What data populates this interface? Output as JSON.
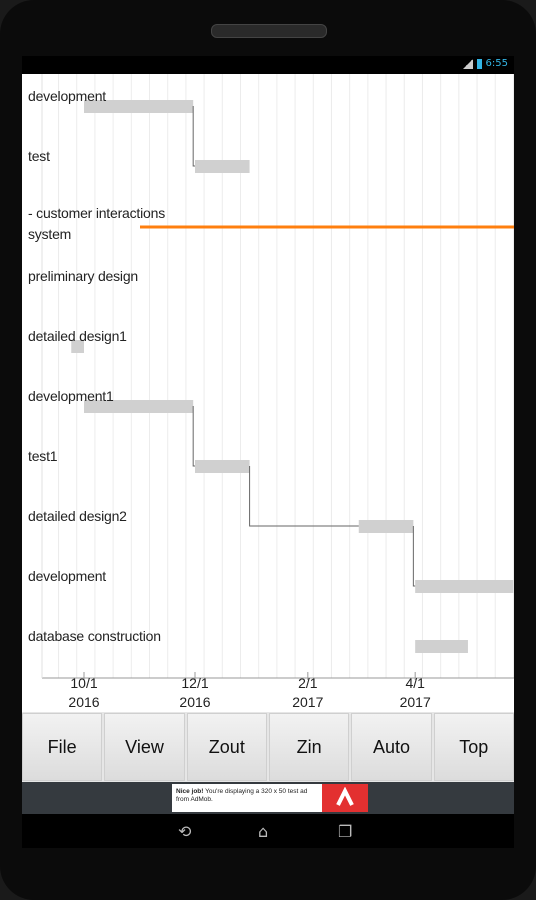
{
  "statusbar": {
    "time": "6:55"
  },
  "chart_data": {
    "type": "gantt",
    "tasks": [
      {
        "name": "development",
        "start": "2016-10-01",
        "end": "2016-11-30"
      },
      {
        "name": "test",
        "start": "2016-12-01",
        "end": "2016-12-31"
      },
      {
        "name": "- customer interactions\nsystem",
        "start": null,
        "end": null
      },
      {
        "name": "preliminary design",
        "start": null,
        "end": null
      },
      {
        "name": "detailed design1",
        "start": "2016-09-24",
        "end": "2016-10-01"
      },
      {
        "name": "development1",
        "start": "2016-10-01",
        "end": "2016-11-30"
      },
      {
        "name": "test1",
        "start": "2016-12-01",
        "end": "2016-12-31"
      },
      {
        "name": "detailed design2",
        "start": "2017-03-01",
        "end": "2017-03-31"
      },
      {
        "name": "development",
        "start": "2017-04-01",
        "end": "2017-05-25"
      },
      {
        "name": "database construction",
        "start": "2017-04-01",
        "end": "2017-04-30"
      }
    ],
    "x_ticks": [
      {
        "line1": "10/1",
        "line2": "2016",
        "date": "2016-10-01"
      },
      {
        "line1": "12/1",
        "line2": "2016",
        "date": "2016-12-01"
      },
      {
        "line1": "2/1",
        "line2": "2017",
        "date": "2017-02-01"
      },
      {
        "line1": "4/1",
        "line2": "2017",
        "date": "2017-04-01"
      }
    ],
    "today_line_color": "#ff7f0e",
    "bar_color": "#d0d0d0"
  },
  "toolbar": {
    "file": "File",
    "view": "View",
    "zout": "Zout",
    "zin": "Zin",
    "auto": "Auto",
    "top": "Top"
  },
  "ad": {
    "title": "Nice job!",
    "body": "You're displaying a 320 x 50 test ad from AdMob."
  },
  "icons": {
    "back": "back-icon",
    "home": "home-icon",
    "recents": "recents-icon"
  }
}
